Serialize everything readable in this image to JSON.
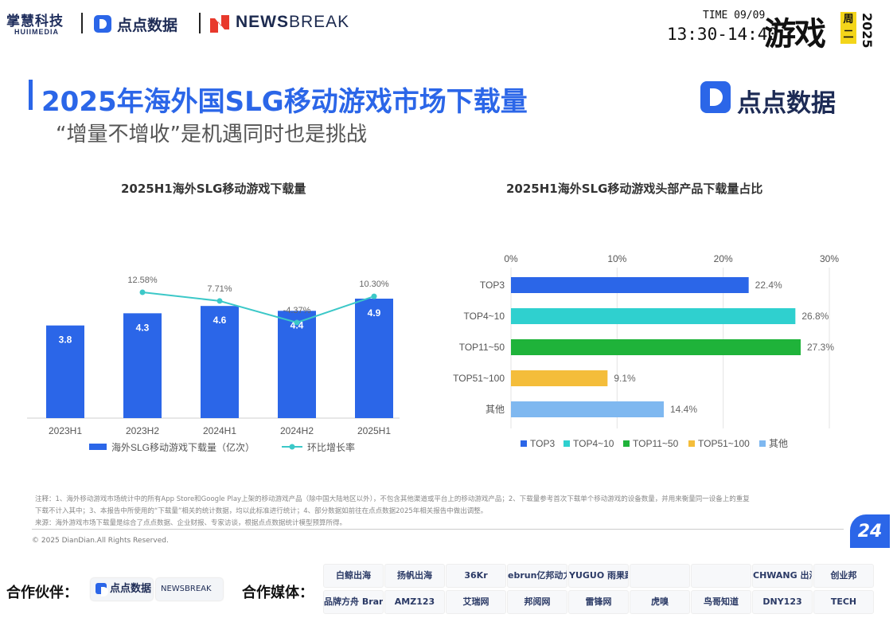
{
  "header": {
    "org1_name": "掌慧科技",
    "org1_sub": "HUIIMEDIA",
    "org2_name": "点点数据",
    "org3_name_bold": "NEWS",
    "org3_name_rest": "BREAK",
    "time_label": "TIME 09/09",
    "time_range": "13:30-14:40",
    "session": "游戏",
    "weekday": "周二",
    "year": "2025"
  },
  "slide": {
    "title": "2025年海外国SLG移动游戏市场下载量",
    "subtitle": "“增量不增收”是机遇同时也是挑战",
    "brand": "点点数据",
    "page_number": "24"
  },
  "chart_data": [
    {
      "type": "bar",
      "title": "2025H1海外SLG移动游戏下载量",
      "categories": [
        "2023H1",
        "2023H2",
        "2024H1",
        "2024H2",
        "2025H1"
      ],
      "series": [
        {
          "name": "海外SLG移动游戏下载量（亿次）",
          "type": "bar",
          "values": [
            3.8,
            4.3,
            4.6,
            4.4,
            4.9
          ],
          "labels": [
            "3.8",
            "4.3",
            "4.6",
            "4.4",
            "4.9"
          ],
          "color": "#2b66e8"
        },
        {
          "name": "环比增长率",
          "type": "line",
          "values": [
            null,
            12.58,
            7.71,
            -4.37,
            10.3
          ],
          "labels": [
            "",
            "12.58%",
            "7.71%",
            "-4.37%",
            "10.30%"
          ],
          "color": "#3cc8c8"
        }
      ],
      "legend": "bottom"
    },
    {
      "type": "bar",
      "orientation": "horizontal",
      "title": "2025H1海外SLG移动游戏头部产品下载量占比",
      "categories": [
        "TOP3",
        "TOP4~10",
        "TOP11~50",
        "TOP51~100",
        "其他"
      ],
      "values": [
        22.4,
        26.8,
        27.3,
        9.1,
        14.4
      ],
      "labels": [
        "22.4%",
        "26.8%",
        "27.3%",
        "9.1%",
        "14.4%"
      ],
      "colors": [
        "#2b66e8",
        "#2fd0cf",
        "#1fb33a",
        "#f4bd3a",
        "#7fb8f0"
      ],
      "xlim": [
        0,
        30
      ],
      "xticks": [
        "0%",
        "10%",
        "20%",
        "30%"
      ],
      "legend": "bottom",
      "grid": true
    }
  ],
  "footnotes": {
    "line1": "注释：1、海外移动游戏市场统计中的所有App Store和Google Play上架的移动游戏产品（除中国大陆地区以外），不包含其他渠道或平台上的移动游戏产品；2、下载量参考首次下载单个移动游戏的设备数量，并用来衡量同一设备上的重复",
    "line2": "下载不计入其中；3、本报告中所使用的“下载量”相关的统计数据，均以此标准进行统计；4、部分数据如前往在点点数据2025年相关报告中做出调整。",
    "line3": "来源：海外游戏市场下载量是综合了点点数据、企业财报、专家访谈，根据点点数据统计模型预算所得。",
    "copyright": "© 2025 DianDian.All Rights Reserved."
  },
  "footer": {
    "partners_label": "合作伙伴：",
    "partners": [
      "点点数据",
      "NEWSBREAK"
    ],
    "media_label": "合作媒体：",
    "media": [
      "白鲸出海",
      "扬帆出海",
      "36Kr",
      "ebrun亿邦动力",
      "YUGUO 雨果跨境",
      "",
      "",
      "CHWANG 出海网",
      "创业邦",
      "品牌方舟 BrandArk",
      "AMZ123",
      "艾瑞网",
      "邦阅网",
      "雷锋网",
      "虎嗅",
      "鸟哥知道",
      "DNY123",
      "TECH"
    ]
  }
}
